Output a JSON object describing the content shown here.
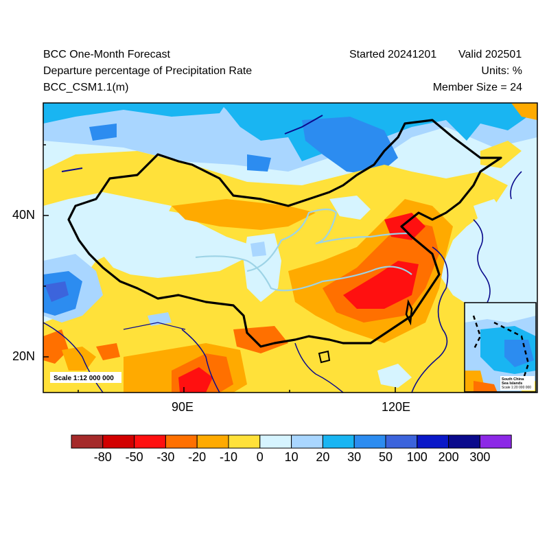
{
  "header": {
    "title_left": "BCC One-Month Forecast",
    "started": "Started 20241201",
    "valid": "Valid 202501",
    "variable": "Departure percentage of Precipitation Rate",
    "units": "Units: %",
    "model": "BCC_CSM1.1(m)",
    "member_size": "Member Size = 24"
  },
  "axes": {
    "lat_labels": [
      "40N",
      "20N"
    ],
    "lon_labels": [
      "90E",
      "120E"
    ]
  },
  "map": {
    "scale_text": "Scale 1:12 000 000",
    "inset_title_1": "South China",
    "inset_title_2": "Sea Islands",
    "inset_scale": "Scale 1:20 000 000"
  },
  "colorbar": {
    "labels": [
      "-80",
      "-50",
      "-30",
      "-20",
      "-10",
      "0",
      "10",
      "20",
      "30",
      "50",
      "100",
      "200",
      "300"
    ],
    "colors": [
      "#a52a2a",
      "#d20000",
      "#ff1010",
      "#ff7000",
      "#ffaa00",
      "#ffe13a",
      "#d6f4ff",
      "#a9d6ff",
      "#19b5f2",
      "#2c8cf0",
      "#3c64dc",
      "#0a18c8",
      "#0a0a8c",
      "#8c28e6"
    ]
  }
}
